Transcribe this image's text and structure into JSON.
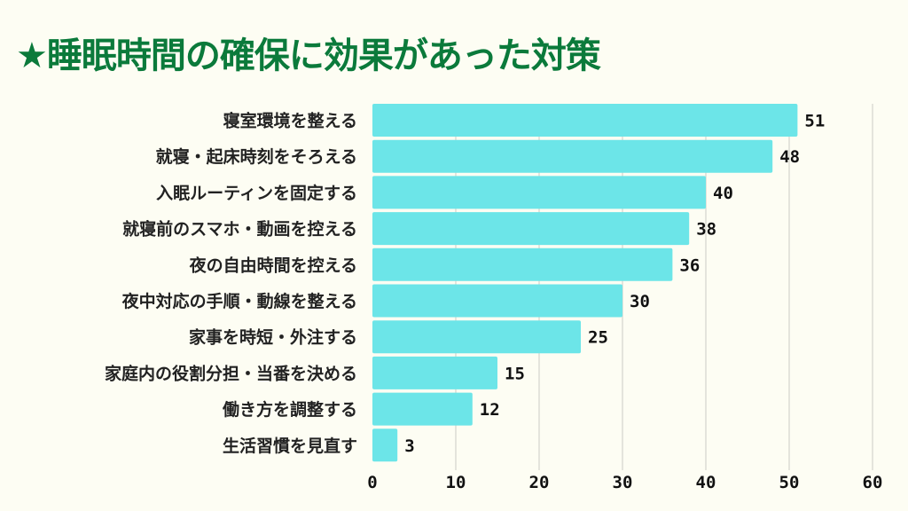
{
  "chart_data": {
    "type": "bar",
    "orientation": "horizontal",
    "title": "★睡眠時間の確保に効果があった対策",
    "categories": [
      "寝室環境を整える",
      "就寝・起床時刻をそろえる",
      "入眠ルーティンを固定する",
      "就寝前のスマホ・動画を控える",
      "夜の自由時間を控える",
      "夜中対応の手順・動線を整える",
      "家事を時短・外注する",
      "家庭内の役割分担・当番を決める",
      "働き方を調整する",
      "生活習慣を見直す"
    ],
    "values": [
      51,
      48,
      40,
      38,
      36,
      30,
      25,
      15,
      12,
      3
    ],
    "xlim": [
      0,
      60
    ],
    "xticks": [
      0,
      10,
      20,
      30,
      40,
      50,
      60
    ],
    "grid": true,
    "xlabel": "",
    "ylabel": "",
    "colors": {
      "bar": "#6ce5e8",
      "title": "#0b7a3b",
      "grid": "#dcdcd4"
    }
  }
}
